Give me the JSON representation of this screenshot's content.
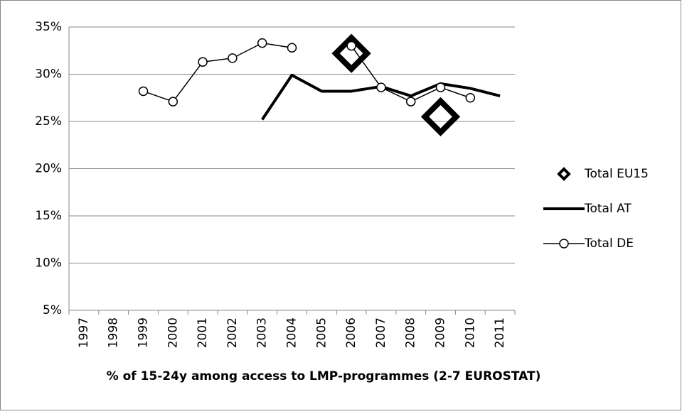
{
  "chart_data": {
    "type": "line",
    "x_label": "% of 15-24y among access to LMP-programmes (2-7 EUROSTAT)",
    "categories": [
      "1997",
      "1998",
      "1999",
      "2000",
      "2001",
      "2002",
      "2003",
      "2004",
      "2005",
      "2006",
      "2007",
      "2008",
      "2009",
      "2010",
      "2011"
    ],
    "series": [
      {
        "name": "Total EU15",
        "color": "#000000",
        "marker": "diamond",
        "line": false,
        "values": [
          null,
          null,
          null,
          null,
          null,
          null,
          null,
          null,
          null,
          32.2,
          null,
          null,
          25.5,
          null,
          null
        ]
      },
      {
        "name": "Total AT",
        "color": "#000000",
        "marker": "none",
        "line": true,
        "values": [
          null,
          null,
          null,
          null,
          null,
          null,
          25.2,
          29.9,
          28.2,
          28.2,
          28.7,
          27.7,
          29.0,
          28.5,
          27.7
        ]
      },
      {
        "name": "Total DE",
        "color": "#000000",
        "marker": "circle",
        "line": true,
        "values": [
          null,
          null,
          28.2,
          27.1,
          31.3,
          31.7,
          33.3,
          32.8,
          null,
          33.0,
          28.6,
          27.1,
          28.6,
          27.5,
          null
        ]
      }
    ],
    "ylim": [
      5,
      35
    ],
    "yticks": [
      {
        "value": 5,
        "label": "5%"
      },
      {
        "value": 10,
        "label": "10%"
      },
      {
        "value": 15,
        "label": "15%"
      },
      {
        "value": 20,
        "label": "20%"
      },
      {
        "value": 25,
        "label": "25%"
      },
      {
        "value": 30,
        "label": "30%"
      },
      {
        "value": 35,
        "label": "35%"
      }
    ],
    "grid": true,
    "legend": "right"
  }
}
